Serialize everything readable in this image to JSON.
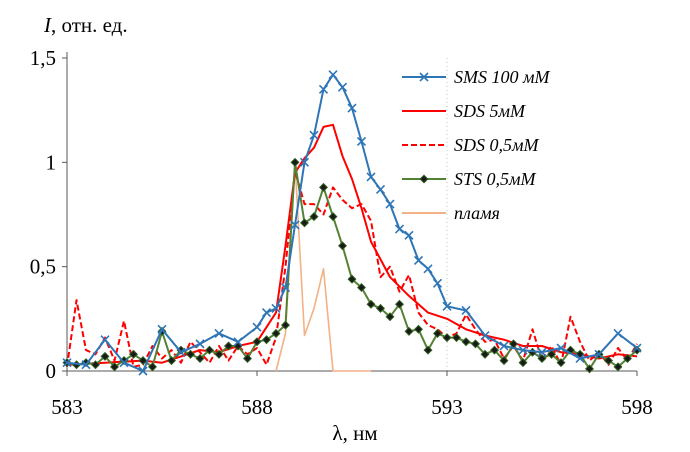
{
  "chart_data": {
    "type": "line",
    "ylabel_italic": "I",
    "ylabel_rest": ", отн. ед.",
    "xlabel": "λ, нм",
    "xlim": [
      583,
      598
    ],
    "ylim": [
      0,
      1.5
    ],
    "x_ticks": [
      "583",
      "588",
      "593",
      "598"
    ],
    "y_ticks": [
      "0",
      "0,5",
      "1",
      "1,5"
    ],
    "x_tick_values": [
      583,
      588,
      593,
      598
    ],
    "y_tick_values": [
      0,
      0.5,
      1,
      1.5
    ],
    "legend_position": "top-right",
    "series": [
      {
        "name": "SMS 100 мМ",
        "color": "#2e75b6",
        "style": "solid",
        "marker": "x",
        "x": [
          583,
          583.5,
          584,
          584.5,
          585,
          585.5,
          586,
          586.5,
          587,
          587.5,
          588,
          588.25,
          588.5,
          588.75,
          589,
          589.25,
          589.5,
          589.75,
          590,
          590.25,
          590.5,
          590.75,
          591,
          591.25,
          591.5,
          591.75,
          592,
          592.25,
          592.5,
          592.75,
          593,
          593.5,
          594,
          594.5,
          595,
          595.5,
          596,
          596.5,
          597,
          597.5,
          598
        ],
        "y": [
          0.04,
          0.03,
          0.15,
          0.04,
          0.0,
          0.2,
          0.09,
          0.13,
          0.18,
          0.14,
          0.21,
          0.28,
          0.3,
          0.4,
          0.7,
          1.0,
          1.13,
          1.35,
          1.42,
          1.36,
          1.26,
          1.1,
          0.93,
          0.87,
          0.8,
          0.68,
          0.65,
          0.53,
          0.49,
          0.42,
          0.31,
          0.29,
          0.17,
          0.12,
          0.1,
          0.09,
          0.11,
          0.06,
          0.08,
          0.18,
          0.11
        ]
      },
      {
        "name": "SDS 5мМ",
        "color": "#ff0000",
        "style": "solid",
        "marker": "none",
        "x": [
          583,
          584,
          585,
          585.5,
          586,
          586.5,
          587,
          587.5,
          588,
          588.5,
          588.75,
          589,
          589.25,
          589.5,
          589.75,
          590,
          590.25,
          590.5,
          590.75,
          591,
          591.5,
          592,
          592.5,
          593,
          593.5,
          594,
          594.5,
          595,
          595.5,
          596,
          596.5,
          597,
          597.5,
          598
        ],
        "y": [
          0.03,
          0.04,
          0.05,
          0.04,
          0.07,
          0.1,
          0.09,
          0.12,
          0.14,
          0.28,
          0.6,
          0.95,
          1.02,
          1.07,
          1.17,
          1.18,
          1.03,
          0.92,
          0.78,
          0.62,
          0.45,
          0.36,
          0.28,
          0.25,
          0.2,
          0.17,
          0.15,
          0.12,
          0.12,
          0.09,
          0.08,
          0.06,
          0.08,
          0.07
        ]
      },
      {
        "name": "SDS 0,5мМ",
        "color": "#ff0000",
        "style": "dashed",
        "marker": "none",
        "x": [
          583,
          583.25,
          583.5,
          583.75,
          584,
          584.25,
          584.5,
          584.75,
          585,
          585.25,
          585.5,
          585.75,
          586,
          586.25,
          586.5,
          586.75,
          587,
          587.25,
          587.5,
          587.75,
          588,
          588.25,
          588.5,
          588.75,
          589,
          589.25,
          589.5,
          589.75,
          590,
          590.25,
          590.5,
          590.75,
          591,
          591.25,
          591.5,
          591.75,
          592,
          592.25,
          592.5,
          592.75,
          593,
          593.25,
          593.5,
          593.75,
          594,
          594.25,
          594.5,
          594.75,
          595,
          595.25,
          595.5,
          595.75,
          596,
          596.25,
          596.5,
          596.75,
          597,
          597.25,
          597.5,
          597.75,
          598
        ],
        "y": [
          0.02,
          0.34,
          0.1,
          0.08,
          0.16,
          0.05,
          0.24,
          0.02,
          0.03,
          0.12,
          0.06,
          0.1,
          0.04,
          0.14,
          0.09,
          0.04,
          0.12,
          0.05,
          0.12,
          0.08,
          0.11,
          0.03,
          0.16,
          0.5,
          0.96,
          0.8,
          0.8,
          0.75,
          0.88,
          0.82,
          0.78,
          0.8,
          0.72,
          0.45,
          0.5,
          0.38,
          0.46,
          0.28,
          0.22,
          0.2,
          0.16,
          0.18,
          0.27,
          0.2,
          0.14,
          0.15,
          0.06,
          0.12,
          0.05,
          0.2,
          0.05,
          0.12,
          0.03,
          0.26,
          0.14,
          0.05,
          0.09,
          0.03,
          0.11,
          0.05,
          0.13
        ]
      },
      {
        "name": "STS 0,5мМ",
        "color": "#548235",
        "style": "solid",
        "marker": "diamond",
        "x": [
          583,
          583.25,
          583.5,
          583.75,
          584,
          584.25,
          584.5,
          584.75,
          585,
          585.25,
          585.5,
          585.75,
          586,
          586.25,
          586.5,
          586.75,
          587,
          587.25,
          587.5,
          587.75,
          588,
          588.25,
          588.5,
          588.75,
          589,
          589.25,
          589.5,
          589.75,
          590,
          590.25,
          590.5,
          590.75,
          591,
          591.25,
          591.5,
          591.75,
          592,
          592.25,
          592.5,
          592.75,
          593,
          593.25,
          593.5,
          593.75,
          594,
          594.25,
          594.5,
          594.75,
          595,
          595.25,
          595.5,
          595.75,
          596,
          596.25,
          596.5,
          596.75,
          597,
          597.25,
          597.5,
          597.75,
          598
        ],
        "y": [
          0.04,
          0.03,
          0.04,
          0.03,
          0.07,
          0.02,
          0.05,
          0.08,
          0.05,
          0.02,
          0.19,
          0.05,
          0.1,
          0.08,
          0.06,
          0.1,
          0.08,
          0.12,
          0.12,
          0.06,
          0.14,
          0.15,
          0.18,
          0.22,
          1.0,
          0.71,
          0.74,
          0.88,
          0.74,
          0.6,
          0.44,
          0.4,
          0.32,
          0.3,
          0.26,
          0.32,
          0.19,
          0.2,
          0.1,
          0.18,
          0.16,
          0.16,
          0.14,
          0.13,
          0.08,
          0.1,
          0.05,
          0.13,
          0.04,
          0.09,
          0.06,
          0.08,
          0.04,
          0.1,
          0.08,
          0.01,
          0.08,
          0.05,
          0.02,
          0.06,
          0.1
        ]
      },
      {
        "name": "пламя",
        "color": "#f4b183",
        "style": "solid",
        "marker": "none",
        "x": [
          588.5,
          588.75,
          589,
          589.25,
          589.5,
          589.75,
          590,
          590.25,
          590.5,
          591
        ],
        "y": [
          0.0,
          0.18,
          1.0,
          0.17,
          0.3,
          0.49,
          0.0,
          0.0,
          0.0,
          0.0
        ]
      }
    ]
  }
}
